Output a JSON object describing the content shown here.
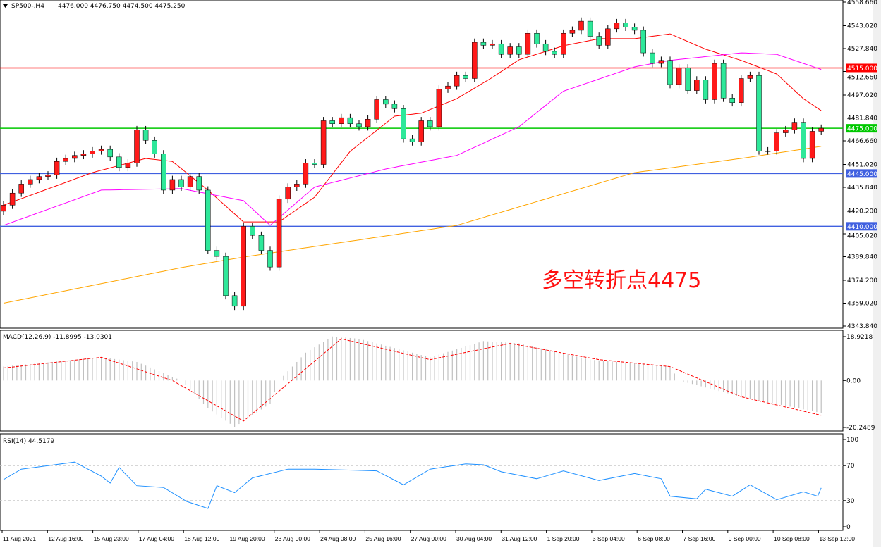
{
  "header": {
    "symbol": "SP500-,H4",
    "ohlc": "4476.000 4476.750 4474.500 4475.250"
  },
  "annotation": "多空转折点4475",
  "colors": {
    "up": "#ff1a1a",
    "down": "#2ee89a",
    "ma_fast": "#ff0000",
    "ma_mid": "#ff00ff",
    "ma_slow": "#ffa500",
    "macd_hist": "#c0c0c0",
    "macd_signal": "#ff0000",
    "rsi": "#1e90ff"
  },
  "chart_data": [
    {
      "type": "candlestick",
      "panel": "price",
      "yaxis_ticks": [
        "4558.660",
        "4543.020",
        "4527.840",
        "4512.660",
        "4497.020",
        "4481.840",
        "4466.660",
        "4451.020",
        "4435.840",
        "4420.200",
        "4405.020",
        "4389.840",
        "4374.200",
        "4359.020",
        "4343.840"
      ],
      "ylim": [
        4343.84,
        4558.66
      ],
      "x_labels": [
        "11 Aug 2021",
        "12 Aug 16:00",
        "15 Aug 23:00",
        "17 Aug 04:00",
        "18 Aug 12:00",
        "19 Aug 20:00",
        "23 Aug 00:00",
        "24 Aug 08:00",
        "25 Aug 16:00",
        "27 Aug 00:00",
        "30 Aug 04:00",
        "31 Aug 12:00",
        "1 Sep 20:00",
        "3 Sep 04:00",
        "6 Sep 08:00",
        "7 Sep 16:00",
        "9 Sep 00:00",
        "10 Sep 08:00",
        "13 Sep 12:00"
      ],
      "closes": [
        4424,
        4432,
        4438,
        4441,
        4443,
        4444,
        4453,
        4455,
        4457,
        4458,
        4460,
        4461,
        4456,
        4449,
        4452,
        4474,
        4467,
        4458,
        4434,
        4441,
        4436,
        4443,
        4434,
        4394,
        4390,
        4364,
        4357,
        4410,
        4404,
        4394,
        4383,
        4428,
        4436,
        4438,
        4452,
        4451,
        4480,
        4478,
        4482,
        4478,
        4476,
        4481,
        4494,
        4491,
        4488,
        4468,
        4466,
        4480,
        4476,
        4501,
        4503,
        4510,
        4508,
        4532,
        4530,
        4531,
        4524,
        4529,
        4524,
        4538,
        4531,
        4526,
        4524,
        4538,
        4540,
        4546,
        4536,
        4530,
        4541,
        4545,
        4542,
        4540,
        4525,
        4518,
        4520,
        4504,
        4515,
        4500,
        4507,
        4494,
        4518,
        4495,
        4492,
        4508,
        4510,
        4460,
        4460,
        4472,
        4474,
        4479,
        4455,
        4473,
        4475
      ],
      "first_open": 4420,
      "ma_lines": [
        {
          "color_key": "ma_fast",
          "points": [
            [
              0,
              4424
            ],
            [
              10,
              4445.6
            ],
            [
              16,
              4455
            ],
            [
              19,
              4453
            ],
            [
              23,
              4434
            ],
            [
              27,
              4412.9
            ],
            [
              31,
              4412.9
            ],
            [
              35,
              4429.3
            ],
            [
              39,
              4459.7
            ],
            [
              44,
              4483
            ],
            [
              47,
              4485
            ],
            [
              51,
              4494.6
            ],
            [
              55,
              4508.7
            ],
            [
              58,
              4520.4
            ],
            [
              63,
              4529.7
            ],
            [
              67,
              4534.4
            ],
            [
              71,
              4534.4
            ],
            [
              75,
              4537.6
            ],
            [
              79,
              4527.4
            ],
            [
              83,
              4520
            ],
            [
              87,
              4511
            ],
            [
              90,
              4494.6
            ],
            [
              92,
              4486.7
            ]
          ]
        },
        {
          "color_key": "ma_mid",
          "points": [
            [
              0,
              4410.6
            ],
            [
              11,
              4434
            ],
            [
              20,
              4435
            ],
            [
              27,
              4427
            ],
            [
              30,
              4410.6
            ],
            [
              35,
              4436
            ],
            [
              43,
              4448
            ],
            [
              51,
              4457
            ],
            [
              58,
              4476
            ],
            [
              63,
              4499.6
            ],
            [
              71,
              4515.7
            ],
            [
              75,
              4520
            ],
            [
              83,
              4525
            ],
            [
              87,
              4524
            ],
            [
              92,
              4514
            ]
          ]
        },
        {
          "color_key": "ma_slow",
          "points": [
            [
              0,
              4359
            ],
            [
              20,
              4382.6
            ],
            [
              27,
              4389.6
            ],
            [
              51,
              4410.6
            ],
            [
              71,
              4445.6
            ],
            [
              83,
              4455
            ],
            [
              92,
              4463
            ]
          ]
        }
      ],
      "hlines": [
        {
          "value": 4515,
          "label": "4515.000",
          "color": "#ff0000"
        },
        {
          "value": 4475,
          "label": "4475.000",
          "color": "#00c800"
        },
        {
          "value": 4445,
          "label": "4445.000",
          "color": "#4060e0"
        },
        {
          "value": 4410,
          "label": "4410.000",
          "color": "#4060e0"
        }
      ]
    },
    {
      "type": "bar",
      "panel": "macd",
      "title": "MACD(12,26,9) -11.8995 -13.0301",
      "yaxis_ticks": [
        "18.9218",
        "0.00",
        "-20.2489"
      ],
      "ylim": [
        -20.2489,
        18.9218
      ],
      "histogram_points": [
        [
          0,
          6
        ],
        [
          11,
          10
        ],
        [
          15,
          8
        ],
        [
          20,
          0
        ],
        [
          23,
          -12
        ],
        [
          26,
          -20
        ],
        [
          30,
          -10
        ],
        [
          31,
          0
        ],
        [
          34,
          12
        ],
        [
          37,
          19
        ],
        [
          40,
          18
        ],
        [
          48,
          10
        ],
        [
          54,
          17
        ],
        [
          58,
          16
        ],
        [
          66,
          9
        ],
        [
          75,
          6
        ],
        [
          76,
          0
        ],
        [
          83,
          -7
        ],
        [
          92,
          -14
        ]
      ],
      "signal_points": [
        [
          0,
          5.4
        ],
        [
          11,
          10
        ],
        [
          19,
          0
        ],
        [
          27,
          -17.5
        ],
        [
          38,
          18
        ],
        [
          48,
          9
        ],
        [
          57,
          16
        ],
        [
          67,
          9
        ],
        [
          75,
          6
        ],
        [
          83,
          -7
        ],
        [
          92,
          -15
        ]
      ]
    },
    {
      "type": "line",
      "panel": "rsi",
      "title": "RSI(14) 44.5179",
      "yaxis_ticks": [
        "100",
        "70",
        "30",
        "0"
      ],
      "ylim": [
        0,
        100
      ],
      "levels": [
        70,
        30
      ],
      "points": [
        [
          0,
          54
        ],
        [
          2,
          66
        ],
        [
          5,
          70
        ],
        [
          8,
          74
        ],
        [
          11,
          58
        ],
        [
          12,
          50
        ],
        [
          13,
          68
        ],
        [
          15,
          47
        ],
        [
          18,
          45
        ],
        [
          20.6,
          29
        ],
        [
          23,
          21
        ],
        [
          24,
          47
        ],
        [
          26,
          39
        ],
        [
          28,
          56
        ],
        [
          32,
          66
        ],
        [
          35,
          66
        ],
        [
          42,
          64
        ],
        [
          45,
          48
        ],
        [
          48,
          66
        ],
        [
          52,
          72
        ],
        [
          54,
          71
        ],
        [
          56,
          63
        ],
        [
          60,
          55
        ],
        [
          63,
          64
        ],
        [
          67,
          53
        ],
        [
          71,
          61
        ],
        [
          74,
          55
        ],
        [
          75,
          35
        ],
        [
          78,
          32
        ],
        [
          79,
          43
        ],
        [
          82,
          35
        ],
        [
          84,
          48
        ],
        [
          87,
          31
        ],
        [
          90,
          40
        ],
        [
          91.6,
          35
        ],
        [
          92,
          44.5
        ]
      ]
    }
  ]
}
